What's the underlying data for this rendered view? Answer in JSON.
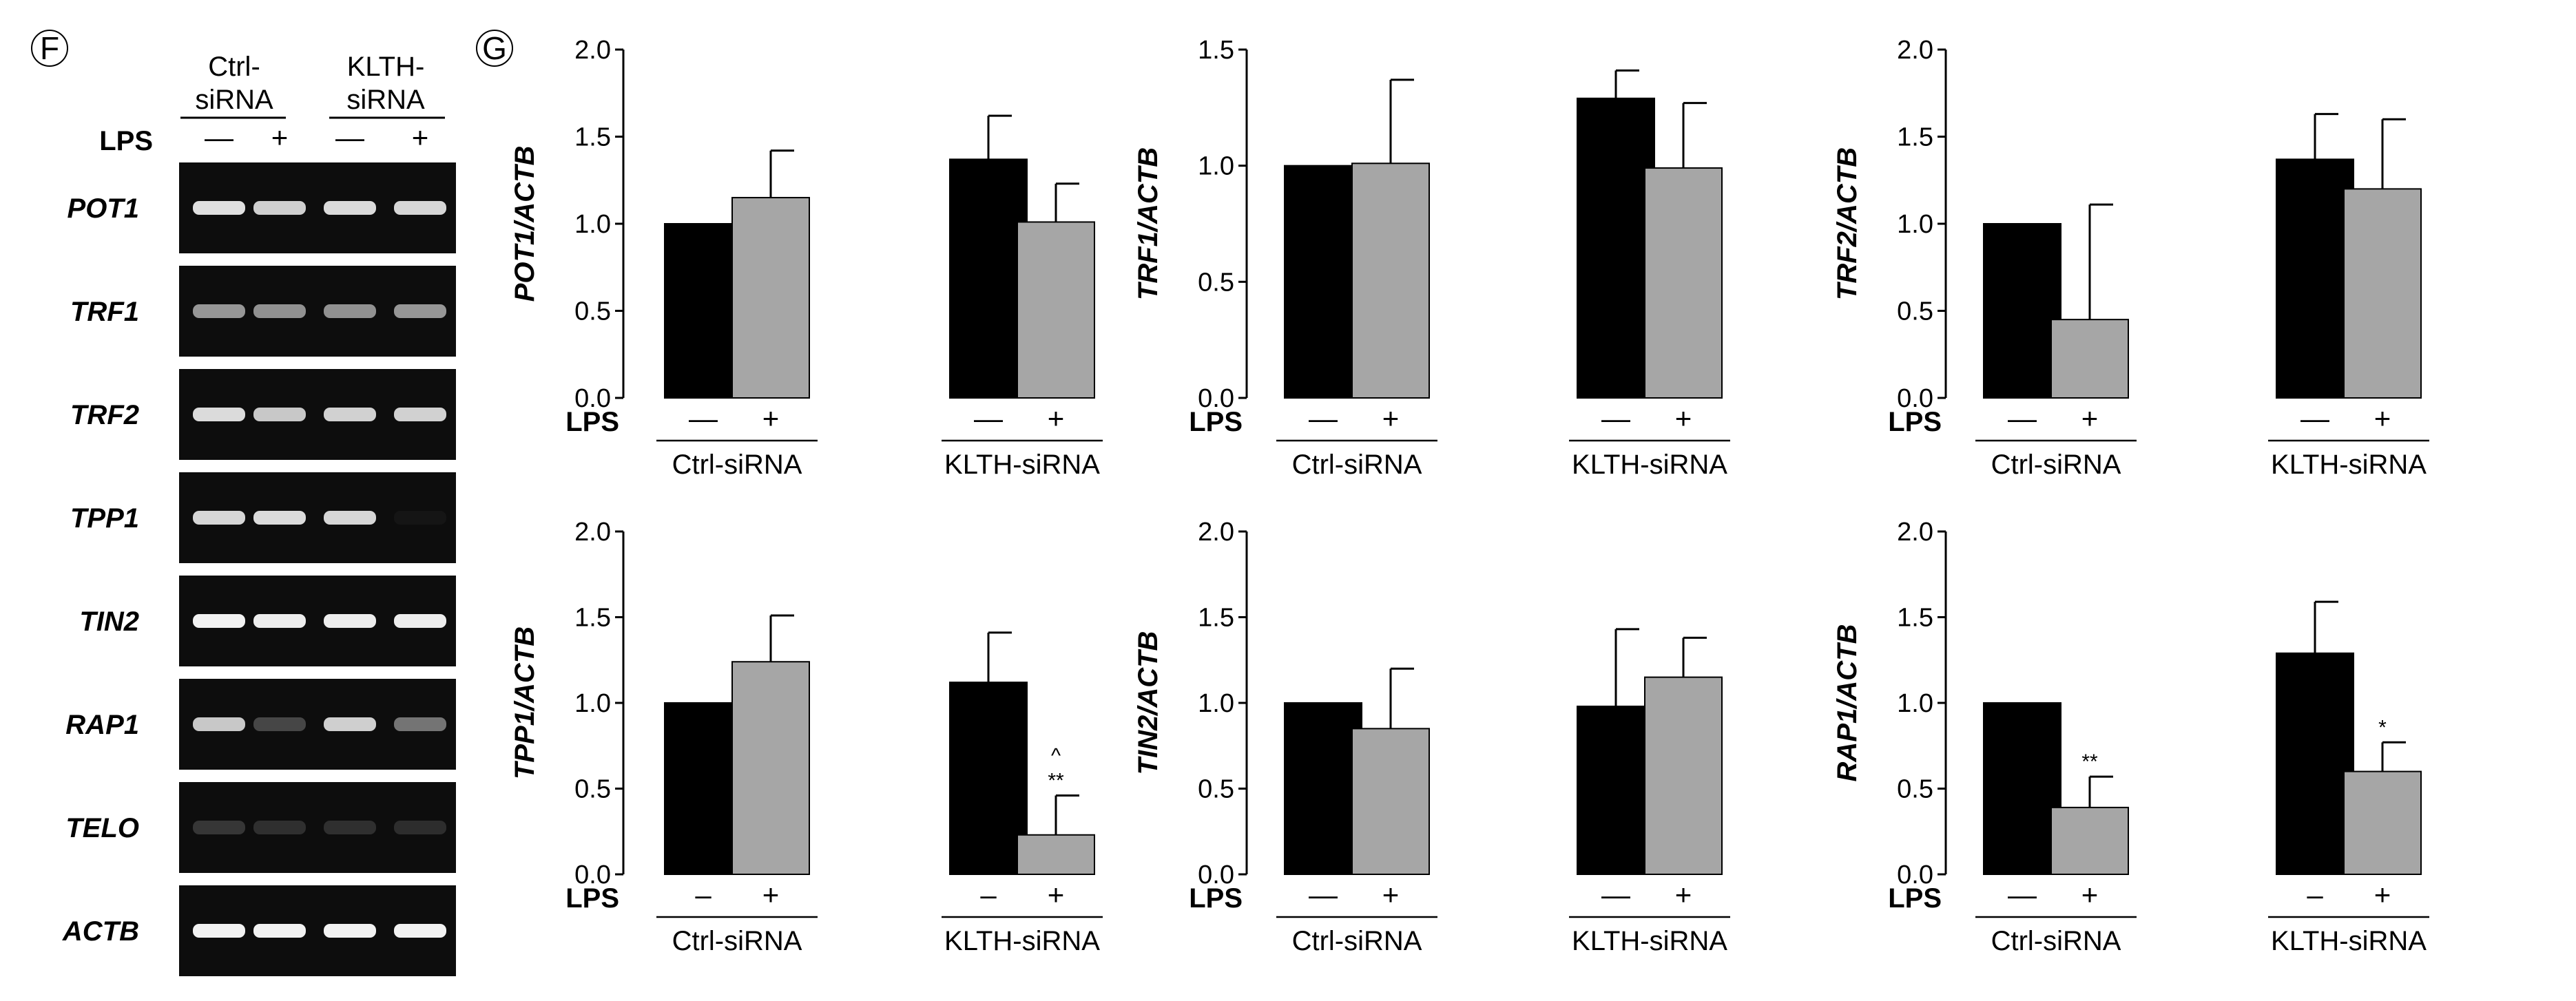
{
  "panel_F": {
    "letter": "F",
    "header": {
      "ctrl_line1": "Ctrl-",
      "ctrl_line2": "siRNA",
      "klth_line1": "KLTH-",
      "klth_line2": "siRNA"
    },
    "lps_label": "LPS",
    "lps_signs": [
      "—",
      "+",
      "—",
      "+"
    ],
    "genes": [
      {
        "name": "POT1",
        "band_intensity": [
          0.92,
          0.85,
          0.9,
          0.88
        ]
      },
      {
        "name": "TRF1",
        "band_intensity": [
          0.6,
          0.58,
          0.58,
          0.6
        ]
      },
      {
        "name": "TRF2",
        "band_intensity": [
          0.9,
          0.82,
          0.86,
          0.86
        ]
      },
      {
        "name": "TPP1",
        "band_intensity": [
          0.88,
          0.9,
          0.88,
          0.04
        ]
      },
      {
        "name": "TIN2",
        "band_intensity": [
          1.0,
          0.98,
          0.98,
          0.98
        ]
      },
      {
        "name": "RAP1",
        "band_intensity": [
          0.82,
          0.25,
          0.85,
          0.45
        ]
      },
      {
        "name": "TELO",
        "band_intensity": [
          0.18,
          0.15,
          0.15,
          0.14
        ]
      },
      {
        "name": "ACTB",
        "band_intensity": [
          1.0,
          1.0,
          1.0,
          1.0
        ]
      }
    ]
  },
  "panel_G": {
    "letter": "G"
  },
  "colors": {
    "black_bar": "#000000",
    "grey_bar": "#a6a6a6",
    "gel_bg": "#0d0d0d",
    "band": "#f2f2f2"
  },
  "chart_data": [
    {
      "type": "bar",
      "ylabel": "POT1/ACTB",
      "ylim": [
        0,
        2.0
      ],
      "yticks": [
        "0.0",
        "0.5",
        "1.0",
        "1.5",
        "2.0"
      ],
      "categories": [
        "Ctrl-siRNA",
        "KLTH-siRNA"
      ],
      "lps_label": "LPS",
      "lps_signs": [
        "—",
        "+",
        "—",
        "+"
      ],
      "series": [
        {
          "name": "LPS −",
          "values": [
            1.0,
            1.37
          ],
          "errors": [
            0,
            0.25
          ]
        },
        {
          "name": "LPS +",
          "values": [
            1.15,
            1.01
          ],
          "errors": [
            0.27,
            0.22
          ]
        }
      ],
      "annotations": [
        "",
        "",
        "",
        ""
      ]
    },
    {
      "type": "bar",
      "ylabel": "TRF1/ACTB",
      "ylim": [
        0,
        1.5
      ],
      "yticks": [
        "0.0",
        "0.5",
        "1.0",
        "1.5"
      ],
      "categories": [
        "Ctrl-siRNA",
        "KLTH-siRNA"
      ],
      "lps_label": "LPS",
      "lps_signs": [
        "—",
        "+",
        "—",
        "+"
      ],
      "series": [
        {
          "name": "LPS −",
          "values": [
            1.0,
            1.29
          ],
          "errors": [
            0,
            0.12
          ]
        },
        {
          "name": "LPS +",
          "values": [
            1.01,
            0.99
          ],
          "errors": [
            0.36,
            0.28
          ]
        }
      ],
      "annotations": [
        "",
        "",
        "",
        ""
      ]
    },
    {
      "type": "bar",
      "ylabel": "TRF2/ACTB",
      "ylim": [
        0,
        2.0
      ],
      "yticks": [
        "0.0",
        "0.5",
        "1.0",
        "1.5",
        "2.0"
      ],
      "categories": [
        "Ctrl-siRNA",
        "KLTH-siRNA"
      ],
      "lps_label": "LPS",
      "lps_signs": [
        "—",
        "+",
        "—",
        "+"
      ],
      "series": [
        {
          "name": "LPS −",
          "values": [
            1.0,
            1.37
          ],
          "errors": [
            0,
            0.26
          ]
        },
        {
          "name": "LPS +",
          "values": [
            0.45,
            1.2
          ],
          "errors": [
            0.66,
            0.4
          ]
        }
      ],
      "annotations": [
        "",
        "",
        "",
        ""
      ]
    },
    {
      "type": "bar",
      "ylabel": "TPP1/ACTB",
      "ylim": [
        0,
        2.0
      ],
      "yticks": [
        "0.0",
        "0.5",
        "1.0",
        "1.5",
        "2.0"
      ],
      "categories": [
        "Ctrl-siRNA",
        "KLTH-siRNA"
      ],
      "lps_label": "LPS",
      "lps_signs": [
        "–",
        "+",
        "–",
        "+"
      ],
      "series": [
        {
          "name": "LPS −",
          "values": [
            1.0,
            1.12
          ],
          "errors": [
            0,
            0.29
          ]
        },
        {
          "name": "LPS +",
          "values": [
            1.24,
            0.23
          ],
          "errors": [
            0.27,
            0.23
          ]
        }
      ],
      "annotations": [
        "",
        "",
        "",
        "**"
      ],
      "extra_annotations": [
        "",
        "",
        "",
        "^"
      ]
    },
    {
      "type": "bar",
      "ylabel": "TIN2/ACTB",
      "ylim": [
        0,
        2.0
      ],
      "yticks": [
        "0.0",
        "0.5",
        "1.0",
        "1.5",
        "2.0"
      ],
      "categories": [
        "Ctrl-siRNA",
        "KLTH-siRNA"
      ],
      "lps_label": "LPS",
      "lps_signs": [
        "—",
        "+",
        "—",
        "+"
      ],
      "series": [
        {
          "name": "LPS −",
          "values": [
            1.0,
            0.98
          ],
          "errors": [
            0,
            0.45
          ]
        },
        {
          "name": "LPS +",
          "values": [
            0.85,
            1.15
          ],
          "errors": [
            0.35,
            0.23
          ]
        }
      ],
      "annotations": [
        "",
        "",
        "",
        ""
      ]
    },
    {
      "type": "bar",
      "ylabel": "RAP1/ACTB",
      "ylim": [
        0,
        2.0
      ],
      "yticks": [
        "0.0",
        "0.5",
        "1.0",
        "1.5",
        "2.0"
      ],
      "categories": [
        "Ctrl-siRNA",
        "KLTH-siRNA"
      ],
      "lps_label": "LPS",
      "lps_signs": [
        "—",
        "+",
        "–",
        "+"
      ],
      "series": [
        {
          "name": "LPS −",
          "values": [
            1.0,
            1.29
          ],
          "errors": [
            0,
            0.3
          ]
        },
        {
          "name": "LPS +",
          "values": [
            0.39,
            0.6
          ],
          "errors": [
            0.18,
            0.17
          ]
        }
      ],
      "annotations": [
        "",
        "**",
        "",
        "*"
      ]
    }
  ]
}
